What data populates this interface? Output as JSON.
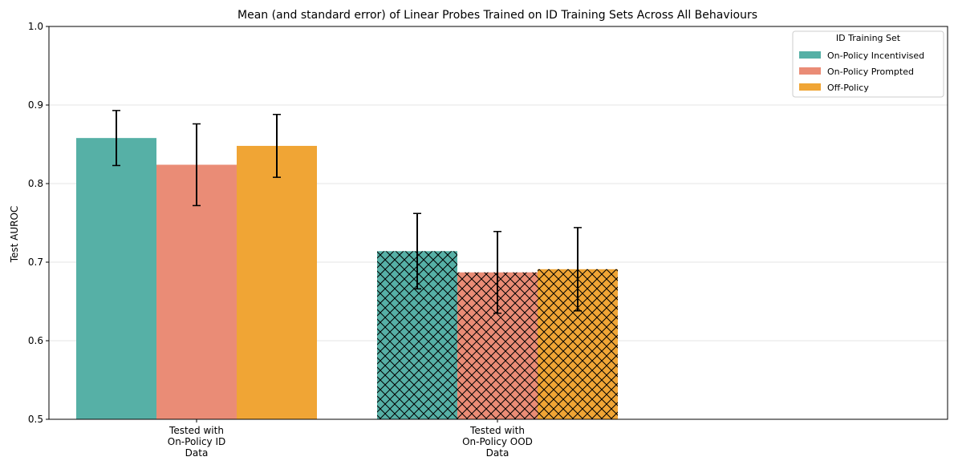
{
  "chart_data": {
    "type": "bar",
    "title": "Mean (and standard error) of Linear Probes Trained on ID Training Sets Across All Behaviours",
    "xlabel": "",
    "ylabel": "Test AUROC",
    "ylim": [
      0.5,
      1.0
    ],
    "yticks": [
      "0.5",
      "0.6",
      "0.7",
      "0.8",
      "0.9",
      "1.0"
    ],
    "grid": "horizontal",
    "categories": [
      [
        "Tested with",
        "On-Policy ID",
        "Data"
      ],
      [
        "Tested with",
        "On-Policy OOD",
        "Data"
      ]
    ],
    "category_hatch": [
      "none",
      "crosshatch"
    ],
    "series": [
      {
        "name": "On-Policy Incentivised",
        "color": "#56b0a6",
        "values": [
          0.858,
          0.714
        ],
        "errors": [
          0.035,
          0.048
        ]
      },
      {
        "name": "On-Policy Prompted",
        "color": "#ea8c76",
        "values": [
          0.824,
          0.687
        ],
        "errors": [
          0.052,
          0.052
        ]
      },
      {
        "name": "Off-Policy",
        "color": "#f0a535",
        "values": [
          0.848,
          0.691
        ],
        "errors": [
          0.04,
          0.053
        ]
      }
    ],
    "legend": {
      "title": "ID Training Set",
      "position": "top-right"
    }
  }
}
